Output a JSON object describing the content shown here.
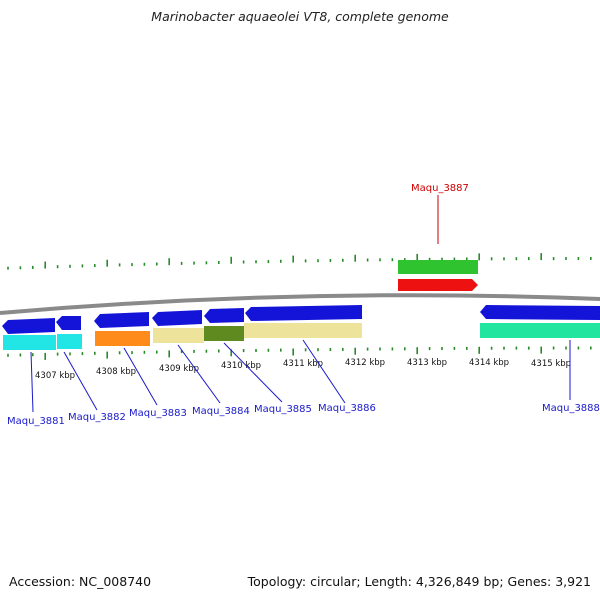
{
  "title": "Marinobacter aquaeolei VT8, complete genome",
  "footer": {
    "accession": "Accession: NC_008740",
    "summary": "Topology: circular; Length: 4,326,849 bp; Genes: 3,921"
  },
  "colors": {
    "backbone": "#808080",
    "tick": "#2a8a2a",
    "label_blue": "#1a1acc",
    "label_red": "#cc0000",
    "gene_blue": "#1414d9",
    "cyan": "#22e6e6",
    "orange": "#ff8c1a",
    "khaki": "#eee39a",
    "olive": "#5f8a1f",
    "green": "#2fc42f",
    "red": "#ee1111",
    "seagreen": "#22e6a0"
  },
  "scale_labels": [
    "4307 kbp",
    "4308 kbp",
    "4309 kbp",
    "4310 kbp",
    "4311 kbp",
    "4312 kbp",
    "4313 kbp",
    "4314 kbp",
    "4315 kbp"
  ],
  "gene_labels": [
    {
      "text": "Maqu_3881",
      "color": "label_blue"
    },
    {
      "text": "Maqu_3882",
      "color": "label_blue"
    },
    {
      "text": "Maqu_3883",
      "color": "label_blue"
    },
    {
      "text": "Maqu_3884",
      "color": "label_blue"
    },
    {
      "text": "Maqu_3885",
      "color": "label_blue"
    },
    {
      "text": "Maqu_3886",
      "color": "label_blue"
    },
    {
      "text": "Maqu_3887",
      "color": "label_red"
    },
    {
      "text": "Maqu_3888",
      "color": "label_blue"
    }
  ]
}
